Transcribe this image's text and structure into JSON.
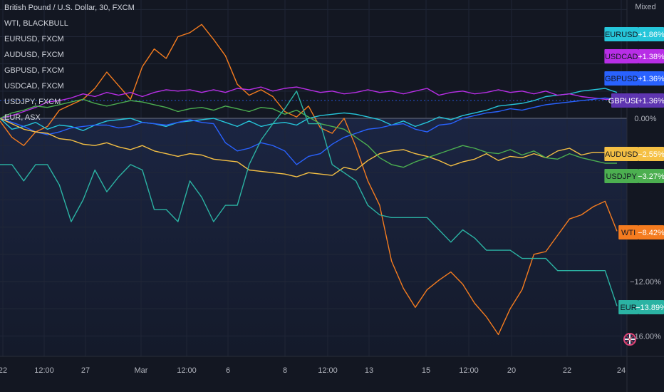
{
  "title": "British Pound / U.S. Dollar, 30, FXCM",
  "scale_mode": "Mixed",
  "legend": [
    "WTI, BLACKBULL",
    "EURUSD, FXCM",
    "AUDUSD, FXCM",
    "GBPUSD, FXCM",
    "USDCAD, FXCM",
    "USDJPY, FXCM",
    "EUR, ASX"
  ],
  "chart_data": {
    "type": "line",
    "title": "British Pound / U.S. Dollar, 30, FXCM",
    "xlabel": "",
    "ylabel": "",
    "x_ticks": [
      "22",
      "12:00",
      "27",
      "Mar",
      "12:00",
      "6",
      "8",
      "12:00",
      "13",
      "15",
      "12:00",
      "20",
      "22",
      "24"
    ],
    "y_ticks": [
      "0.00%",
      "−12.00%",
      "−16.00%"
    ],
    "ylim": [
      -17.6,
      8.5
    ],
    "grid": true,
    "legend_position": "top-left",
    "series": [
      {
        "name": "WTI",
        "color": "#f57c1f",
        "last": "−8.42%",
        "values": [
          -0.2,
          -1.4,
          -2.0,
          -1.0,
          -0.6,
          0.6,
          1.0,
          1.4,
          2.2,
          3.4,
          2.4,
          1.4,
          3.8,
          5.1,
          4.4,
          6.0,
          6.3,
          6.9,
          5.8,
          4.6,
          2.5,
          1.7,
          2.1,
          1.6,
          0.5,
          0.1,
          0.9,
          -0.7,
          -1.1,
          0.0,
          -2.1,
          -4.6,
          -6.4,
          -10.5,
          -12.5,
          -13.9,
          -12.6,
          -11.9,
          -11.3,
          -12.2,
          -13.6,
          -14.6,
          -15.9,
          -14.0,
          -12.6,
          -10.0,
          -9.8,
          -8.6,
          -7.4,
          -7.1,
          -6.5,
          -6.1,
          -8.3
        ]
      },
      {
        "name": "EURUSD",
        "color": "#26c6da",
        "last": "+1.86%",
        "values": [
          0.0,
          -0.8,
          -0.6,
          -0.3,
          -0.8,
          -0.5,
          -0.6,
          -0.9,
          -0.5,
          -0.2,
          -0.1,
          0.0,
          -0.3,
          -0.4,
          -0.6,
          -0.3,
          -0.2,
          -0.1,
          0.0,
          -0.3,
          -0.6,
          -0.2,
          -0.6,
          -0.4,
          -0.3,
          -0.5,
          0.0,
          0.2,
          0.3,
          0.4,
          0.3,
          0.1,
          -0.1,
          -0.5,
          -0.2,
          -0.6,
          -0.3,
          0.1,
          -0.1,
          0.2,
          0.4,
          0.6,
          0.9,
          1.0,
          1.1,
          1.3,
          1.6,
          1.7,
          1.8,
          2.0,
          2.1,
          2.2,
          1.9
        ]
      },
      {
        "name": "USDCAD",
        "color": "#b82ee6",
        "last": "+1.38%",
        "values": [
          0.0,
          0.2,
          0.5,
          0.8,
          1.2,
          1.3,
          1.5,
          1.8,
          1.6,
          1.9,
          1.7,
          1.9,
          1.6,
          1.9,
          2.1,
          2.0,
          2.1,
          1.9,
          2.1,
          1.9,
          2.2,
          2.1,
          2.3,
          2.0,
          2.2,
          2.3,
          2.1,
          1.9,
          2.0,
          1.8,
          1.9,
          2.1,
          1.9,
          2.0,
          1.8,
          2.0,
          2.2,
          1.7,
          1.9,
          2.0,
          1.8,
          1.9,
          2.1,
          1.9,
          2.0,
          1.8,
          2.0,
          1.7,
          1.8,
          1.6,
          1.5,
          1.4,
          1.4
        ]
      },
      {
        "name": "GBPUSD",
        "color": "#2962ff",
        "last": "+1.36%",
        "values": [
          0.0,
          -0.3,
          -0.6,
          -1.0,
          -1.2,
          -1.0,
          -0.7,
          -0.6,
          -0.5,
          -0.5,
          -0.7,
          -0.6,
          -0.3,
          -0.4,
          -0.5,
          -0.3,
          -0.1,
          -0.3,
          -0.4,
          -1.8,
          -2.4,
          -2.2,
          -1.8,
          -2.0,
          -2.4,
          -3.4,
          -2.8,
          -2.6,
          -1.9,
          -1.4,
          -1.1,
          -0.8,
          -0.7,
          -0.5,
          -0.4,
          -0.8,
          -1.0,
          -0.5,
          -0.4,
          0.0,
          0.2,
          0.4,
          0.5,
          0.7,
          0.6,
          0.8,
          1.0,
          1.1,
          1.2,
          1.3,
          1.4,
          1.5,
          1.4
        ]
      },
      {
        "name": "AUDUSD",
        "color": "#f5c044",
        "last": "−2.55%",
        "values": [
          0.0,
          -0.4,
          -0.8,
          -1.0,
          -1.1,
          -1.5,
          -1.6,
          -1.9,
          -2.0,
          -1.8,
          -2.1,
          -2.3,
          -2.0,
          -2.4,
          -2.6,
          -2.8,
          -2.6,
          -2.7,
          -3.0,
          -3.1,
          -3.2,
          -3.8,
          -3.9,
          -4.0,
          -4.1,
          -4.3,
          -4.0,
          -4.1,
          -4.2,
          -3.6,
          -3.8,
          -3.1,
          -2.6,
          -2.4,
          -2.3,
          -2.6,
          -2.8,
          -3.1,
          -3.5,
          -3.2,
          -3.0,
          -2.6,
          -3.1,
          -2.8,
          -2.9,
          -2.6,
          -2.9,
          -2.4,
          -2.2,
          -2.7,
          -2.5,
          -2.5,
          -2.5
        ]
      },
      {
        "name": "USDJPY",
        "color": "#4caf50",
        "last": "−3.27%",
        "values": [
          0.0,
          0.4,
          0.6,
          0.9,
          0.8,
          1.0,
          1.2,
          1.4,
          1.1,
          0.9,
          1.1,
          1.3,
          1.2,
          1.0,
          0.8,
          0.5,
          0.7,
          0.8,
          0.6,
          0.9,
          0.7,
          0.5,
          0.8,
          0.7,
          0.3,
          0.6,
          0.1,
          -0.4,
          -0.6,
          -0.8,
          -1.4,
          -2.0,
          -2.9,
          -3.4,
          -3.6,
          -3.2,
          -2.9,
          -2.6,
          -2.3,
          -2.0,
          -2.2,
          -2.5,
          -2.6,
          -2.3,
          -2.7,
          -2.4,
          -2.9,
          -3.0,
          -2.6,
          -2.9,
          -3.1,
          -3.3,
          -3.3
        ]
      },
      {
        "name": "EUR",
        "color": "#2bb3a3",
        "last": "−13.89%",
        "values": [
          -3.4,
          -3.4,
          -4.6,
          -3.4,
          -3.4,
          -4.9,
          -7.6,
          -6.0,
          -3.8,
          -5.4,
          -4.3,
          -3.4,
          -3.8,
          -6.7,
          -6.7,
          -7.6,
          -4.6,
          -5.8,
          -7.6,
          -6.4,
          -6.4,
          -3.4,
          -1.6,
          -0.4,
          0.7,
          2.0,
          -0.4,
          -0.4,
          -3.4,
          -4.0,
          -4.6,
          -6.4,
          -7.1,
          -7.3,
          -7.3,
          -7.3,
          -7.3,
          -8.2,
          -9.1,
          -8.2,
          -8.8,
          -9.7,
          -9.7,
          -9.7,
          -10.3,
          -10.3,
          -10.3,
          -11.2,
          -11.2,
          -11.2,
          -11.2,
          -11.2,
          -13.8
        ]
      }
    ]
  }
}
